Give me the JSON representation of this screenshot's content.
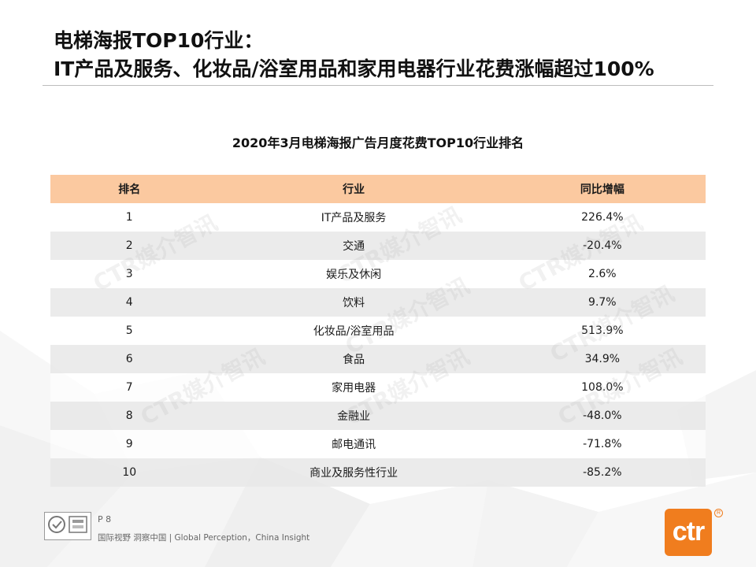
{
  "title": {
    "line1": "电梯海报TOP10行业：",
    "line2": "IT产品及服务、化妆品/浴室用品和家用电器行业花费涨幅超过100%"
  },
  "table": {
    "caption": "2020年3月电梯海报广告月度花费TOP10行业排名",
    "headers": [
      "排名",
      "行业",
      "同比增幅"
    ],
    "rows": [
      {
        "rank": "1",
        "industry": "IT产品及服务",
        "yoy": "226.4%"
      },
      {
        "rank": "2",
        "industry": "交通",
        "yoy": "-20.4%"
      },
      {
        "rank": "3",
        "industry": "娱乐及休闲",
        "yoy": "2.6%"
      },
      {
        "rank": "4",
        "industry": "饮料",
        "yoy": "9.7%"
      },
      {
        "rank": "5",
        "industry": "化妆品/浴室用品",
        "yoy": "513.9%"
      },
      {
        "rank": "6",
        "industry": "食品",
        "yoy": "34.9%"
      },
      {
        "rank": "7",
        "industry": "家用电器",
        "yoy": "108.0%"
      },
      {
        "rank": "8",
        "industry": "金融业",
        "yoy": "-48.0%"
      },
      {
        "rank": "9",
        "industry": "邮电通讯",
        "yoy": "-71.8%"
      },
      {
        "rank": "10",
        "industry": "商业及服务性行业",
        "yoy": "-85.2%"
      }
    ]
  },
  "watermark": "CTR媒介智讯",
  "footer": {
    "page": "P 8",
    "slogan": "国际视野 洞察中国 | Global Perception，China Insight",
    "logo": "ctr"
  },
  "colors": {
    "header_bg": "#fbc9a0",
    "row_stripe": "#e8e8e8",
    "brand_orange": "#f07d1e"
  }
}
